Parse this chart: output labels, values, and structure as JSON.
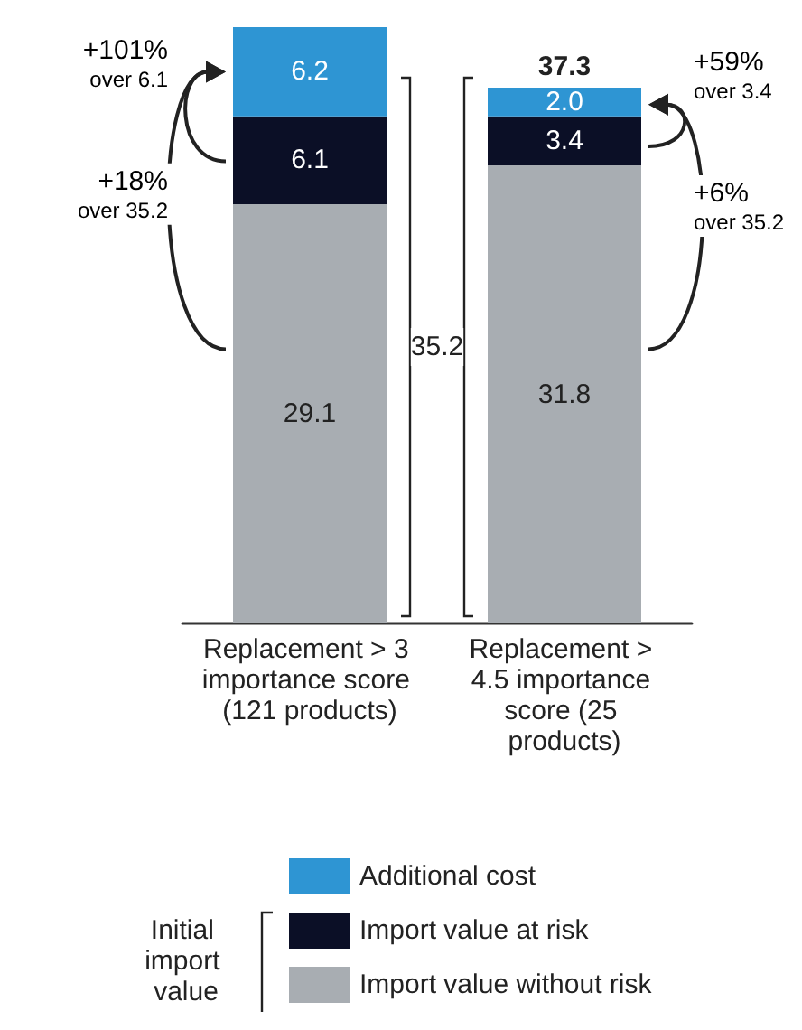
{
  "chart_data": {
    "type": "bar",
    "stacked": true,
    "categories": [
      "Replacement > 3 importance score (121 products)",
      "Replacement > 4.5 importance score (25 products)"
    ],
    "series": [
      {
        "name": "Import value without risk",
        "color": "#a8adb2",
        "values": [
          29.1,
          31.8
        ],
        "value_labels": [
          "29.1",
          "31.8"
        ]
      },
      {
        "name": "Import value at risk",
        "color": "#0b0f26",
        "values": [
          6.1,
          3.4
        ],
        "value_labels": [
          "6.1",
          "3.4"
        ]
      },
      {
        "name": "Additional cost",
        "color": "#2e95d3",
        "values": [
          6.2,
          2.0
        ],
        "value_labels": [
          "6.2",
          "2.0"
        ]
      }
    ],
    "totals": [
      null,
      "37.3"
    ],
    "legend": "bottom",
    "legend_title": "Initial import value",
    "annotations": [
      "35.2",
      "+101% over 6.1",
      "+18% over 35.2",
      "+59% over 3.4",
      "+6% over 35.2"
    ]
  }
}
